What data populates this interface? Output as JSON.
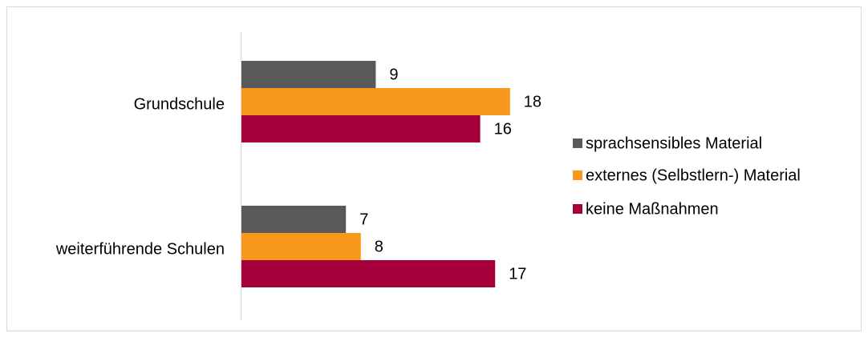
{
  "chart_data": {
    "type": "bar",
    "orientation": "horizontal",
    "categories": [
      "Grundschule",
      "weiterführende Schulen"
    ],
    "series": [
      {
        "name": "sprachsensibles Material",
        "color": "#595959",
        "values": [
          9,
          7
        ]
      },
      {
        "name": "externes (Selbstlern-) Material",
        "color": "#f7981d",
        "values": [
          18,
          8
        ]
      },
      {
        "name": "keine Maßnahmen",
        "color": "#a5003c",
        "values": [
          16,
          17
        ]
      }
    ],
    "xlim": [
      0,
      20
    ],
    "data_labels": true,
    "grid": false,
    "legend_position": "right"
  }
}
